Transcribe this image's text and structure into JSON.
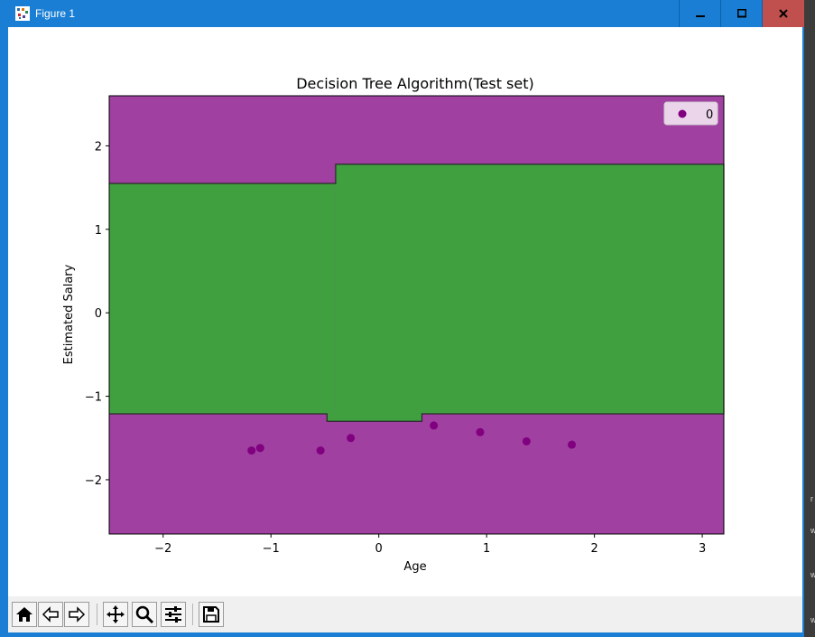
{
  "window": {
    "title": "Figure 1",
    "minimize_label": "minimize",
    "maximize_label": "maximize",
    "close_label": "close"
  },
  "toolbar": {
    "items": [
      {
        "name": "home-button",
        "icon": "home-icon"
      },
      {
        "name": "back-button",
        "icon": "arrow-left-icon"
      },
      {
        "name": "forward-button",
        "icon": "arrow-right-icon"
      },
      {
        "name": "pan-button",
        "icon": "move-icon"
      },
      {
        "name": "zoom-button",
        "icon": "magnifier-icon"
      },
      {
        "name": "configure-subplots-button",
        "icon": "sliders-icon"
      },
      {
        "name": "save-button",
        "icon": "floppy-disk-icon"
      }
    ]
  },
  "chart_data": {
    "type": "scatter",
    "title": "Decision Tree Algorithm(Test set)",
    "xlabel": "Age",
    "ylabel": "Estimated Salary",
    "xlim": [
      -2.5,
      3.2
    ],
    "ylim": [
      -2.65,
      2.6
    ],
    "xticks": [
      -2,
      -1,
      0,
      1,
      2,
      3
    ],
    "yticks": [
      -2,
      -1,
      0,
      1,
      2
    ],
    "xtick_labels": [
      "−2",
      "−1",
      "0",
      "1",
      "2",
      "3"
    ],
    "ytick_labels": [
      "−2",
      "−1",
      "0",
      "1",
      "2"
    ],
    "legend": {
      "placement": "top-right",
      "entries": [
        {
          "label": "0",
          "color": "#800080"
        }
      ]
    },
    "region_colors": {
      "class_0": "#a040a0",
      "class_1": "#40a040"
    },
    "decision_regions": [
      {
        "class": 1,
        "x_range": [
          -2.5,
          -0.4
        ],
        "y_range": [
          -1.21,
          1.55
        ]
      },
      {
        "class": 1,
        "x_range": [
          -0.4,
          3.2
        ],
        "y_range": [
          -1.21,
          1.78
        ]
      },
      {
        "class": 1,
        "x_range": [
          -0.48,
          0.4
        ],
        "y_range": [
          -1.3,
          -1.21
        ]
      }
    ],
    "series": [
      {
        "label": "0",
        "color": "#800080",
        "x": [
          -1.18,
          -1.1,
          -0.54,
          -0.26,
          0.51,
          0.94,
          1.37,
          1.79
        ],
        "y": [
          -1.65,
          -1.62,
          -1.65,
          -1.5,
          -1.35,
          -1.43,
          -1.54,
          -1.58
        ]
      }
    ]
  },
  "side_glyphs": [
    "r",
    "w",
    "w",
    "w"
  ]
}
